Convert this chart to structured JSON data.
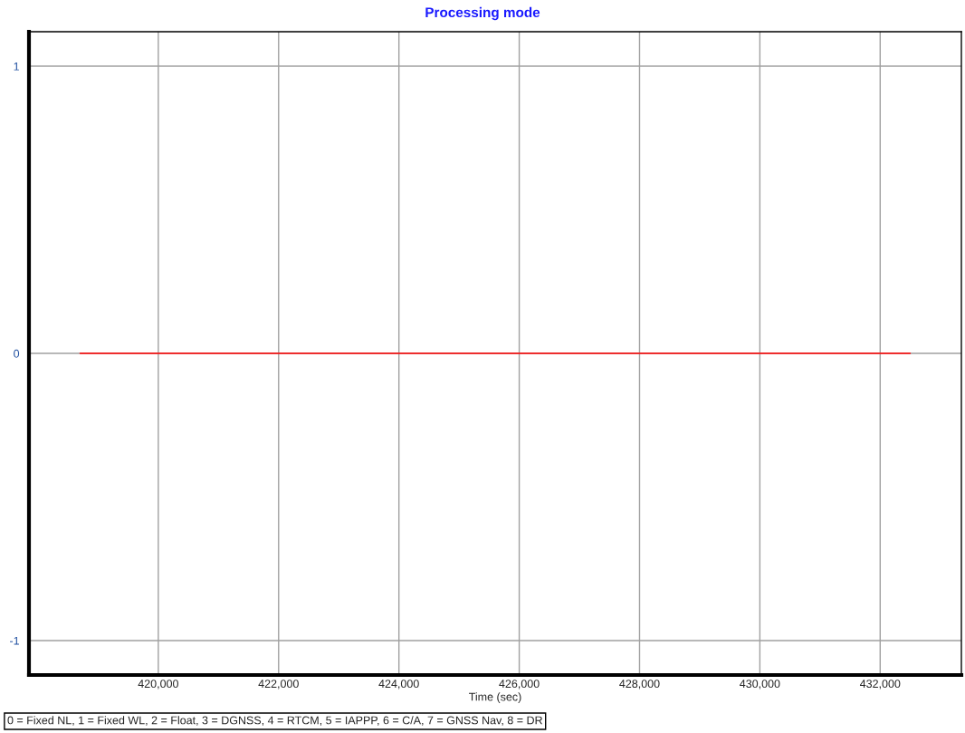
{
  "chart_data": {
    "type": "line",
    "title": "Processing mode",
    "xlabel": "Time (sec)",
    "annotations": [
      "0 = Fixed NL, 1 = Fixed WL, 2 = Float, 3 = DGNSS, 4 = RTCM, 5 = IAPPP, 6 = C/A, 7 = GNSS Nav, 8 = DR"
    ],
    "x": [
      418700,
      432500
    ],
    "series": [
      {
        "color": "#ff0000",
        "values": [
          0,
          0
        ]
      }
    ],
    "xlim": [
      417850,
      433350
    ],
    "xticks": [
      {
        "value": 420000,
        "label": "420,000"
      },
      {
        "value": 422000,
        "label": "422,000"
      },
      {
        "value": 424000,
        "label": "424,000"
      },
      {
        "value": 426000,
        "label": "426,000"
      },
      {
        "value": 428000,
        "label": "428,000"
      },
      {
        "value": 430000,
        "label": "430,000"
      },
      {
        "value": 432000,
        "label": "432,000"
      }
    ],
    "ylim": [
      -1.12,
      1.12
    ],
    "yticks": [
      -1,
      0,
      1
    ],
    "grid": true,
    "legend": false
  }
}
